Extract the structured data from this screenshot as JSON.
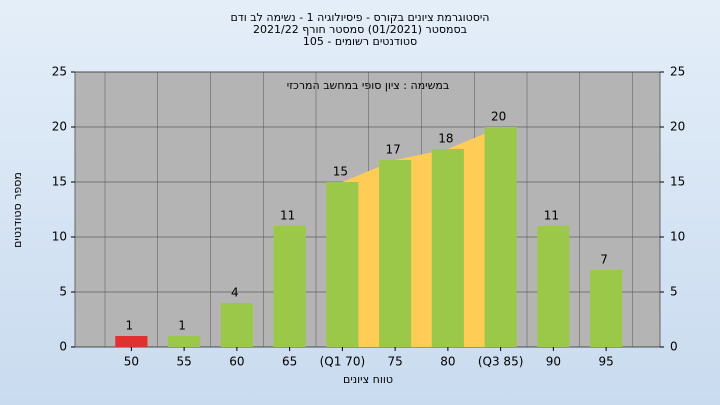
{
  "chart_data": {
    "type": "bar",
    "title": "היסטוגרמת ציונים בקורס - פיסיולוגיה 1 - נשימה לב ודם",
    "subtitle": "בסמסטר  (01/2021)  סמסטר חורף  2021/22",
    "subtitle2": "סטודנטים רשומים - 105",
    "annotation": "במשימה : ציון סופי במחשב המרכזי",
    "x_label": "טווח ציונים",
    "y_label": "מספר סטודנטים",
    "categories": [
      "50",
      "55",
      "60",
      "65",
      "(Q1 70)",
      "75",
      "80",
      "(Q3 85)",
      "90",
      "95"
    ],
    "values": [
      1,
      1,
      4,
      11,
      15,
      17,
      18,
      20,
      11,
      7
    ],
    "colors": [
      "#e03030",
      "#9cc84a",
      "#9cc84a",
      "#9cc84a",
      "#9cc84a",
      "#9cc84a",
      "#9cc84a",
      "#9cc84a",
      "#9cc84a",
      "#9cc84a"
    ],
    "iqr_color": "#ffcc55",
    "ylim": [
      0,
      25
    ],
    "yticks": [
      0,
      5,
      10,
      15,
      20,
      25
    ],
    "y2lim": [
      0,
      25
    ],
    "y2ticks": [
      0,
      5,
      10,
      15,
      20,
      25
    ],
    "grid": true
  }
}
